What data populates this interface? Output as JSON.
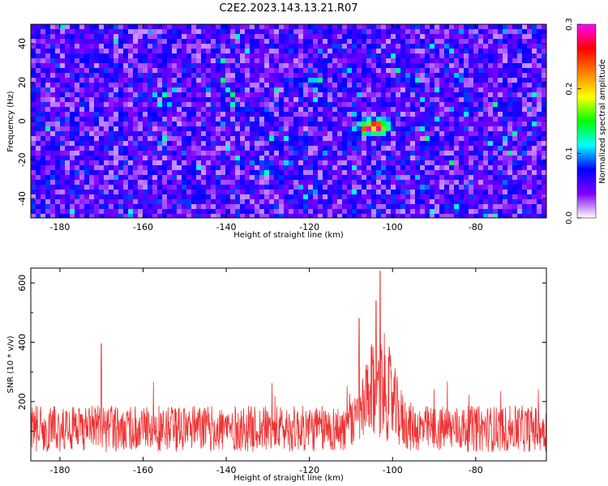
{
  "title": "C2E2.2023.143.13.21.R07",
  "chart_data": [
    {
      "type": "heatmap",
      "xlabel": "Height of straight line (km)",
      "ylabel": "Frequency (Hz)",
      "xlim": [
        -187,
        -63
      ],
      "ylim": [
        -50,
        50
      ],
      "xticks": [
        -180,
        -160,
        -140,
        -120,
        -100,
        -80
      ],
      "yticks": [
        -40,
        -20,
        0,
        20,
        40
      ],
      "colorbar": {
        "label": "Normalized spectral amplitude",
        "range": [
          0.0,
          0.3
        ],
        "ticks": [
          "0.0",
          "0.1",
          "0.2",
          "0.3"
        ],
        "colors": [
          "#ffffff",
          "#8000ff",
          "#0000ff",
          "#00ffff",
          "#00ff00",
          "#ffff00",
          "#ff8000",
          "#ff0000",
          "#ff00ff"
        ]
      },
      "background_level": 0.05,
      "features": [
        {
          "description": "peak cluster",
          "x": -105,
          "y": -2,
          "value": 0.3
        },
        {
          "description": "secondary peak",
          "x": -108,
          "y": 0,
          "value": 0.25
        }
      ]
    },
    {
      "type": "line",
      "xlabel": "Height of straight line (km)",
      "ylabel": "SNR (10 * v/v)",
      "xlim": [
        -187,
        -63
      ],
      "ylim": [
        0,
        650
      ],
      "xticks": [
        -180,
        -160,
        -140,
        -120,
        -100,
        -80
      ],
      "yticks": [
        200,
        400,
        600
      ],
      "color": "#ee3333",
      "baseline_mean": 120,
      "peak": {
        "x": -103,
        "y": 640
      },
      "notable_values": [
        {
          "x": -170,
          "y": 395
        },
        {
          "x": -108,
          "y": 480
        },
        {
          "x": -104,
          "y": 540
        },
        {
          "x": -103,
          "y": 640
        }
      ]
    }
  ]
}
